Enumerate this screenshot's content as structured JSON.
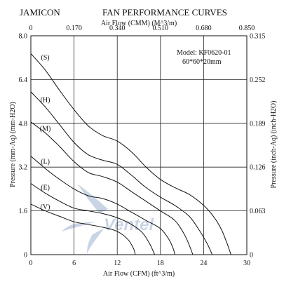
{
  "header": {
    "brand": "JAMICON",
    "title": "FAN PERFORMANCE CURVES"
  },
  "model_box": {
    "model": "Model:  KF0620-01",
    "size": "60*60*20mm"
  },
  "watermark": {
    "text": "Ventel",
    "color": "#c9d4e4"
  },
  "chart_data": {
    "type": "line",
    "title": "FAN PERFORMANCE CURVES",
    "xlabel": "Air Flow (CFM) (ft^3/m)",
    "x2label": "Air Flow (CMM) (M^3/m)",
    "ylabel": "Pressure (mm-Aq) (mm-H2O)",
    "y2label": "Pressure (inch-Aq) (inch-H2O)",
    "xlim": [
      0,
      30
    ],
    "ylim": [
      0,
      8.0
    ],
    "x_ticks": [
      "0",
      "6",
      "12",
      "18",
      "24",
      "30"
    ],
    "x2_ticks": [
      "0",
      "0.170",
      "0.340",
      "0.510",
      "0.680",
      "0.850"
    ],
    "y_ticks": [
      "0",
      "1.6",
      "3.2",
      "4.8",
      "6.4",
      "8.0"
    ],
    "y2_ticks": [
      "0",
      "0.063",
      "0.126",
      "0.189",
      "0.252",
      "0.315"
    ],
    "grid": true,
    "curve_color": "#111111",
    "series": [
      {
        "name": "(S)",
        "label_at": [
          2.0,
          7.2
        ],
        "points": [
          [
            0,
            7.35
          ],
          [
            2,
            6.75
          ],
          [
            4,
            6.0
          ],
          [
            6,
            5.3
          ],
          [
            8,
            4.7
          ],
          [
            10,
            4.35
          ],
          [
            12,
            4.15
          ],
          [
            14,
            3.75
          ],
          [
            16,
            3.2
          ],
          [
            18,
            2.75
          ],
          [
            20,
            2.45
          ],
          [
            22,
            2.2
          ],
          [
            24,
            1.8
          ],
          [
            25.5,
            1.35
          ],
          [
            26.5,
            0.9
          ],
          [
            27.2,
            0.45
          ],
          [
            27.8,
            0.0
          ]
        ]
      },
      {
        "name": "(H)",
        "label_at": [
          2.0,
          5.65
        ],
        "points": [
          [
            0,
            5.95
          ],
          [
            2,
            5.4
          ],
          [
            4,
            4.75
          ],
          [
            6,
            4.1
          ],
          [
            8,
            3.65
          ],
          [
            10,
            3.45
          ],
          [
            12,
            3.3
          ],
          [
            14,
            2.9
          ],
          [
            16,
            2.45
          ],
          [
            18,
            2.1
          ],
          [
            20,
            1.8
          ],
          [
            22,
            1.4
          ],
          [
            23.5,
            0.85
          ],
          [
            24.5,
            0.4
          ],
          [
            25.2,
            0.0
          ]
        ]
      },
      {
        "name": "(M)",
        "label_at": [
          2.0,
          4.6
        ],
        "points": [
          [
            0,
            4.85
          ],
          [
            2,
            4.45
          ],
          [
            4,
            3.95
          ],
          [
            6,
            3.4
          ],
          [
            8,
            3.0
          ],
          [
            10,
            2.85
          ],
          [
            12,
            2.65
          ],
          [
            14,
            2.3
          ],
          [
            16,
            1.95
          ],
          [
            18,
            1.6
          ],
          [
            20,
            1.25
          ],
          [
            21.3,
            0.75
          ],
          [
            22.0,
            0.35
          ],
          [
            22.5,
            0.0
          ]
        ]
      },
      {
        "name": "(L)",
        "label_at": [
          2.0,
          3.4
        ],
        "points": [
          [
            0,
            3.6
          ],
          [
            2,
            3.15
          ],
          [
            4,
            2.75
          ],
          [
            6,
            2.4
          ],
          [
            8,
            2.15
          ],
          [
            10,
            2.05
          ],
          [
            12,
            1.85
          ],
          [
            14,
            1.55
          ],
          [
            16,
            1.25
          ],
          [
            18,
            0.95
          ],
          [
            19.2,
            0.55
          ],
          [
            19.8,
            0.2
          ],
          [
            20.0,
            0.0
          ]
        ]
      },
      {
        "name": "(E)",
        "label_at": [
          2.0,
          2.45
        ],
        "points": [
          [
            0,
            2.6
          ],
          [
            2,
            2.25
          ],
          [
            4,
            1.95
          ],
          [
            6,
            1.7
          ],
          [
            8,
            1.6
          ],
          [
            10,
            1.5
          ],
          [
            12,
            1.35
          ],
          [
            14,
            1.1
          ],
          [
            15.5,
            0.8
          ],
          [
            16.5,
            0.4
          ],
          [
            17.2,
            0.0
          ]
        ]
      },
      {
        "name": "(V)",
        "label_at": [
          2.0,
          1.75
        ],
        "points": [
          [
            0,
            1.85
          ],
          [
            2,
            1.6
          ],
          [
            4,
            1.4
          ],
          [
            6,
            1.2
          ],
          [
            8,
            1.1
          ],
          [
            10,
            1.0
          ],
          [
            12,
            0.85
          ],
          [
            13.5,
            0.55
          ],
          [
            14.3,
            0.2
          ],
          [
            14.5,
            0.0
          ]
        ]
      }
    ]
  }
}
